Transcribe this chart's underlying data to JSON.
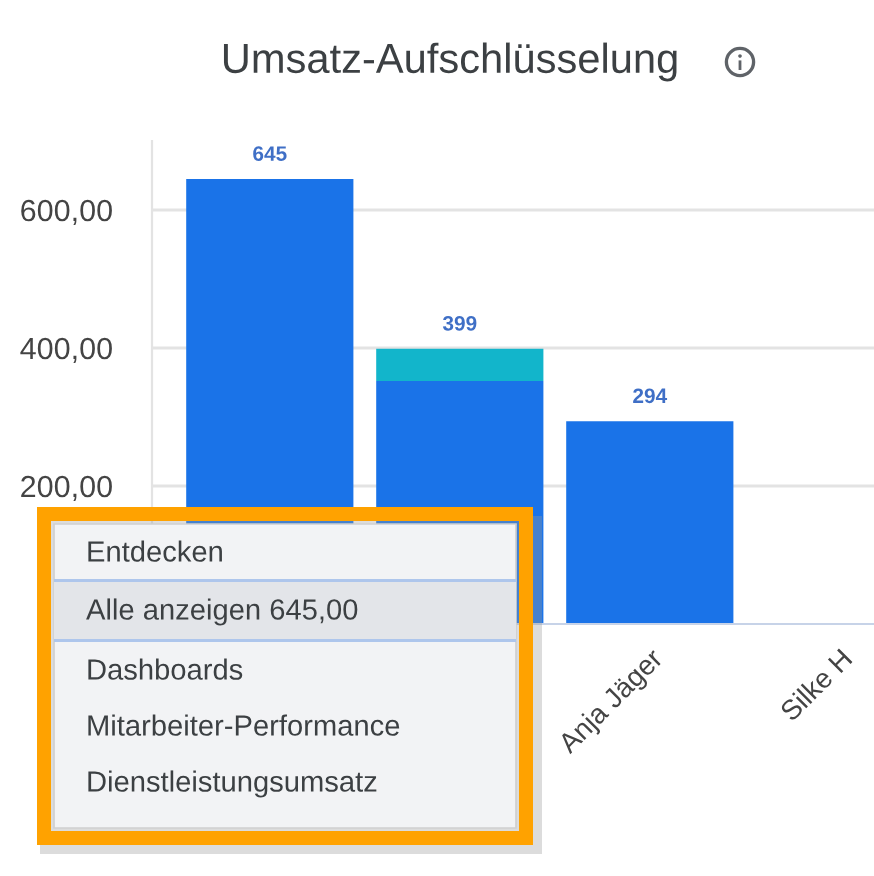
{
  "chart_data": {
    "type": "bar",
    "title": "Umsatz-Aufschlüsselung",
    "categories": [
      null,
      null,
      "Anja Jäger",
      "Silke H"
    ],
    "series": [
      {
        "color": "#1a73e8",
        "values": [
          645,
          352,
          294,
          null
        ]
      },
      {
        "color": "#12b5cb",
        "values": [
          null,
          47,
          null,
          null
        ]
      }
    ],
    "stacked": true,
    "totals": [
      "645",
      "399",
      "294",
      null
    ],
    "ylim": [
      0,
      700
    ],
    "yticks": [
      {
        "value": 200,
        "label": "200,00"
      },
      {
        "value": 400,
        "label": "400,00"
      },
      {
        "value": 600,
        "label": "600,00"
      }
    ],
    "grid": "y",
    "annotations": [
      "Entdecken",
      "Alle anzeigen 645,00",
      "Dashboards",
      "Mitarbeiter-Performance",
      "Dienstleistungsumsatz"
    ]
  }
}
